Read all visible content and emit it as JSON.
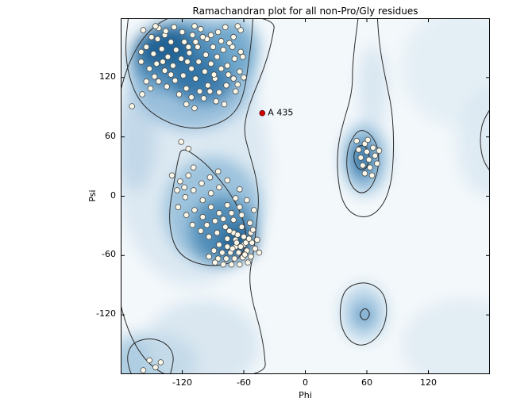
{
  "chart_data": {
    "type": "scatter",
    "title": "Ramachandran plot for all non-Pro/Gly residues",
    "xlabel": "Phi",
    "ylabel": "Psi",
    "xlim": [
      -180,
      180
    ],
    "ylim": [
      -180,
      180
    ],
    "xticks": [
      -120,
      -60,
      0,
      60,
      120
    ],
    "yticks": [
      -120,
      -60,
      0,
      60,
      120
    ],
    "grid": false,
    "legend": null,
    "background": "#f3f8fb",
    "contour_color": "#2b2b2b",
    "point_style": {
      "fill": "#fcf8ea",
      "stroke": "#4a4a4a",
      "radius": 3.4
    },
    "annotation": {
      "label": "A 435",
      "phi": -42,
      "psi": 84,
      "color": "#d40000"
    },
    "points": [
      [
        -158,
        168
      ],
      [
        -150,
        161
      ],
      [
        -143,
        170
      ],
      [
        -137,
        163
      ],
      [
        -131,
        156
      ],
      [
        -155,
        151
      ],
      [
        -148,
        144
      ],
      [
        -140,
        149
      ],
      [
        -134,
        141
      ],
      [
        -126,
        148
      ],
      [
        -160,
        136
      ],
      [
        -152,
        129
      ],
      [
        -145,
        134
      ],
      [
        -137,
        127
      ],
      [
        -129,
        132
      ],
      [
        -121,
        139
      ],
      [
        -113,
        145
      ],
      [
        -105,
        151
      ],
      [
        -118,
        156
      ],
      [
        -110,
        163
      ],
      [
        -102,
        169
      ],
      [
        -96,
        159
      ],
      [
        -90,
        151
      ],
      [
        -97,
        143
      ],
      [
        -104,
        136
      ],
      [
        -111,
        129
      ],
      [
        -119,
        122
      ],
      [
        -127,
        117
      ],
      [
        -135,
        111
      ],
      [
        -143,
        116
      ],
      [
        -151,
        109
      ],
      [
        -159,
        103
      ],
      [
        -98,
        126
      ],
      [
        -92,
        134
      ],
      [
        -86,
        141
      ],
      [
        -80,
        148
      ],
      [
        -74,
        155
      ],
      [
        -88,
        119
      ],
      [
        -95,
        112
      ],
      [
        -103,
        106
      ],
      [
        -111,
        100
      ],
      [
        -84,
        105
      ],
      [
        -77,
        112
      ],
      [
        -70,
        119
      ],
      [
        -64,
        126
      ],
      [
        -76,
        132
      ],
      [
        -69,
        139
      ],
      [
        -63,
        146
      ],
      [
        -70,
        161
      ],
      [
        -63,
        168
      ],
      [
        -120,
        166
      ],
      [
        -128,
        171
      ],
      [
        -136,
        167
      ],
      [
        -144,
        159
      ],
      [
        -85,
        166
      ],
      [
        -78,
        171
      ],
      [
        -92,
        163
      ],
      [
        -71,
        151
      ],
      [
        -66,
        113
      ],
      [
        -60,
        120
      ],
      [
        -61,
        141
      ],
      [
        -123,
        103
      ],
      [
        -116,
        109
      ],
      [
        -131,
        123
      ],
      [
        -139,
        136
      ],
      [
        -147,
        121
      ],
      [
        -155,
        116
      ],
      [
        -100,
        161
      ],
      [
        -107,
        156
      ],
      [
        -114,
        151
      ],
      [
        -82,
        129
      ],
      [
        -89,
        123
      ],
      [
        -107,
        119
      ],
      [
        -115,
        136
      ],
      [
        -93,
        106
      ],
      [
        -160,
        146
      ],
      [
        -75,
        123
      ],
      [
        -68,
        106
      ],
      [
        -82,
        157
      ],
      [
        -99,
        99
      ],
      [
        -87,
        96
      ],
      [
        -79,
        93
      ],
      [
        -116,
        93
      ],
      [
        -108,
        89
      ],
      [
        -169,
        91
      ],
      [
        -146,
        172
      ],
      [
        -108,
        172
      ],
      [
        -66,
        172
      ],
      [
        -121,
        55
      ],
      [
        -114,
        48
      ],
      [
        -130,
        21
      ],
      [
        -122,
        15
      ],
      [
        -114,
        21
      ],
      [
        -125,
        6
      ],
      [
        -117,
        -1
      ],
      [
        -109,
        6
      ],
      [
        -101,
        13
      ],
      [
        -93,
        19
      ],
      [
        -85,
        25
      ],
      [
        -109,
        29
      ],
      [
        -100,
        -4
      ],
      [
        -92,
        3
      ],
      [
        -84,
        9
      ],
      [
        -76,
        16
      ],
      [
        -92,
        -11
      ],
      [
        -84,
        -17
      ],
      [
        -76,
        -9
      ],
      [
        -68,
        -2
      ],
      [
        -100,
        -21
      ],
      [
        -108,
        -14
      ],
      [
        -116,
        -19
      ],
      [
        -124,
        -11
      ],
      [
        -96,
        -29
      ],
      [
        -88,
        -25
      ],
      [
        -80,
        -23
      ],
      [
        -72,
        -17
      ],
      [
        -64,
        -11
      ],
      [
        -70,
        -24
      ],
      [
        -62,
        -19
      ],
      [
        -78,
        -31
      ],
      [
        -86,
        -37
      ],
      [
        -94,
        -41
      ],
      [
        -102,
        -35
      ],
      [
        -110,
        -29
      ],
      [
        -70,
        -37
      ],
      [
        -62,
        -31
      ],
      [
        -54,
        -27
      ],
      [
        -76,
        -43
      ],
      [
        -68,
        -44
      ],
      [
        -60,
        -41
      ],
      [
        -53,
        -37
      ],
      [
        -84,
        -49
      ],
      [
        -76,
        -51
      ],
      [
        -68,
        -51
      ],
      [
        -60,
        -49
      ],
      [
        -52,
        -47
      ],
      [
        -89,
        -55
      ],
      [
        -81,
        -57
      ],
      [
        -73,
        -57
      ],
      [
        -65,
        -57
      ],
      [
        -57,
        -55
      ],
      [
        -49,
        -53
      ],
      [
        -94,
        -61
      ],
      [
        -85,
        -63
      ],
      [
        -77,
        -63
      ],
      [
        -69,
        -63
      ],
      [
        -61,
        -62
      ],
      [
        -53,
        -61
      ],
      [
        -45,
        -57
      ],
      [
        -72,
        -69
      ],
      [
        -64,
        -69
      ],
      [
        -56,
        -67
      ],
      [
        -80,
        -69
      ],
      [
        -88,
        -67
      ],
      [
        -118,
        9
      ],
      [
        -64,
        7
      ],
      [
        -57,
        -4
      ],
      [
        -50,
        -14
      ],
      [
        -58,
        -47
      ],
      [
        -66,
        -39
      ],
      [
        -74,
        -35
      ],
      [
        -63,
        -51
      ],
      [
        -59,
        -59
      ],
      [
        -55,
        -43
      ],
      [
        -67,
        -47
      ],
      [
        -71,
        -53
      ],
      [
        -51,
        -34
      ],
      [
        -47,
        -44
      ],
      [
        58,
        53
      ],
      [
        52,
        47
      ],
      [
        60,
        45
      ],
      [
        66,
        49
      ],
      [
        54,
        39
      ],
      [
        62,
        37
      ],
      [
        68,
        41
      ],
      [
        56,
        31
      ],
      [
        63,
        29
      ],
      [
        70,
        33
      ],
      [
        58,
        23
      ],
      [
        65,
        21
      ],
      [
        50,
        56
      ],
      [
        72,
        46
      ],
      [
        61,
        57
      ],
      [
        -152,
        -166
      ],
      [
        -146,
        -173
      ],
      [
        -158,
        -176
      ],
      [
        -141,
        -168
      ]
    ],
    "density_blobs": [
      [
        -110,
        30,
        75,
        120,
        "#d9e7f1",
        0.9
      ],
      [
        150,
        130,
        55,
        60,
        "#e2edf4",
        0.9
      ],
      [
        178,
        55,
        30,
        55,
        "#d9e7f1",
        0.8
      ],
      [
        155,
        -150,
        60,
        45,
        "#e0ebf3",
        0.9
      ],
      [
        -150,
        -168,
        45,
        30,
        "#9ec3dc",
        0.8
      ],
      [
        -100,
        -150,
        55,
        45,
        "#cfe0ec",
        0.7
      ],
      [
        -165,
        60,
        20,
        55,
        "#b9d2e5",
        0.7
      ],
      [
        -110,
        125,
        62,
        58,
        "#8fbad8",
        0.85
      ],
      [
        -125,
        140,
        45,
        34,
        "#4585b2",
        0.85
      ],
      [
        -137,
        150,
        27,
        20,
        "#1d5f92",
        0.9
      ],
      [
        -100,
        118,
        30,
        24,
        "#2c6fa3",
        0.8
      ],
      [
        -70,
        150,
        25,
        30,
        "#5f9cc4",
        0.7
      ],
      [
        -90,
        -15,
        48,
        55,
        "#93bdd9",
        0.85
      ],
      [
        -80,
        -35,
        32,
        34,
        "#4585b2",
        0.85
      ],
      [
        -66,
        -47,
        18,
        16,
        "#1d5f92",
        0.9
      ],
      [
        58,
        38,
        22,
        36,
        "#8fbad8",
        0.85
      ],
      [
        56,
        38,
        12,
        20,
        "#2f73a6",
        0.85
      ],
      [
        57,
        -118,
        22,
        28,
        "#a9cbe2",
        0.8
      ],
      [
        57,
        -120,
        9,
        10,
        "#5b94c0",
        0.85
      ],
      [
        66,
        110,
        14,
        42,
        "#cfe0ec",
        0.7
      ]
    ],
    "contours": [
      {
        "name": "outer-left",
        "closed": true,
        "pts": [
          [
            -28,
            185
          ],
          [
            -33,
            155
          ],
          [
            -40,
            130
          ],
          [
            -50,
            105
          ],
          [
            -57,
            85
          ],
          [
            -60,
            65
          ],
          [
            -55,
            45
          ],
          [
            -48,
            20
          ],
          [
            -45,
            -5
          ],
          [
            -48,
            -30
          ],
          [
            -50,
            -55
          ],
          [
            -55,
            -80
          ],
          [
            -52,
            -105
          ],
          [
            -45,
            -130
          ],
          [
            -40,
            -155
          ],
          [
            -38,
            -185
          ],
          [
            -190,
            -185
          ],
          [
            -190,
            185
          ]
        ]
      },
      {
        "name": "beta-region",
        "closed": true,
        "pts": [
          [
            -172,
            185
          ],
          [
            -176,
            150
          ],
          [
            -172,
            120
          ],
          [
            -162,
            96
          ],
          [
            -146,
            81
          ],
          [
            -126,
            71
          ],
          [
            -106,
            68
          ],
          [
            -88,
            72
          ],
          [
            -73,
            80
          ],
          [
            -63,
            94
          ],
          [
            -58,
            114
          ],
          [
            -55,
            138
          ],
          [
            -52,
            162
          ],
          [
            -51,
            185
          ],
          [
            -51,
            192
          ],
          [
            -172,
            192
          ]
        ]
      },
      {
        "name": "alpha-region",
        "closed": true,
        "pts": [
          [
            -120,
            50
          ],
          [
            -100,
            36
          ],
          [
            -85,
            19
          ],
          [
            -72,
            1
          ],
          [
            -62,
            -19
          ],
          [
            -57,
            -39
          ],
          [
            -60,
            -57
          ],
          [
            -70,
            -67
          ],
          [
            -90,
            -71
          ],
          [
            -110,
            -67
          ],
          [
            -124,
            -57
          ],
          [
            -131,
            -40
          ],
          [
            -133,
            -16
          ],
          [
            -128,
            14
          ],
          [
            -124,
            38
          ]
        ]
      },
      {
        "name": "left-handed-outer",
        "closed": true,
        "pts": [
          [
            70,
            185
          ],
          [
            72,
            155
          ],
          [
            76,
            130
          ],
          [
            80,
            110
          ],
          [
            84,
            90
          ],
          [
            86,
            65
          ],
          [
            86,
            40
          ],
          [
            84,
            15
          ],
          [
            78,
            -5
          ],
          [
            68,
            -18
          ],
          [
            56,
            -22
          ],
          [
            44,
            -17
          ],
          [
            36,
            -5
          ],
          [
            32,
            15
          ],
          [
            31,
            38
          ],
          [
            33,
            58
          ],
          [
            38,
            78
          ],
          [
            43,
            95
          ],
          [
            46,
            112
          ],
          [
            46,
            130
          ],
          [
            48,
            152
          ],
          [
            50,
            168
          ],
          [
            52,
            185
          ],
          [
            52,
            192
          ],
          [
            70,
            192
          ]
        ]
      },
      {
        "name": "left-handed-region",
        "closed": true,
        "pts": [
          [
            52,
            68
          ],
          [
            63,
            64
          ],
          [
            70,
            52
          ],
          [
            72,
            38
          ],
          [
            70,
            22
          ],
          [
            64,
            8
          ],
          [
            55,
            2
          ],
          [
            46,
            8
          ],
          [
            41,
            22
          ],
          [
            40,
            38
          ],
          [
            43,
            54
          ]
        ]
      },
      {
        "name": "left-handed-core",
        "closed": true,
        "pts": [
          [
            52,
            52
          ],
          [
            60,
            50
          ],
          [
            63,
            40
          ],
          [
            60,
            28
          ],
          [
            53,
            26
          ],
          [
            48,
            33
          ],
          [
            47,
            43
          ]
        ]
      },
      {
        "name": "bottom-right-region",
        "closed": true,
        "pts": [
          [
            40,
            -92
          ],
          [
            58,
            -86
          ],
          [
            74,
            -94
          ],
          [
            80,
            -110
          ],
          [
            78,
            -130
          ],
          [
            68,
            -146
          ],
          [
            54,
            -152
          ],
          [
            42,
            -146
          ],
          [
            34,
            -130
          ],
          [
            34,
            -108
          ]
        ]
      },
      {
        "name": "bottom-right-core",
        "closed": true,
        "pts": [
          [
            58,
            -112
          ],
          [
            64,
            -119
          ],
          [
            58,
            -127
          ],
          [
            52,
            -120
          ]
        ]
      },
      {
        "name": "bottom-left-region",
        "closed": true,
        "pts": [
          [
            -168,
            -148
          ],
          [
            -152,
            -143
          ],
          [
            -136,
            -148
          ],
          [
            -128,
            -160
          ],
          [
            -130,
            -175
          ],
          [
            -135,
            -190
          ],
          [
            -165,
            -190
          ],
          [
            -172,
            -175
          ],
          [
            -174,
            -160
          ]
        ]
      },
      {
        "name": "right-edge-arc",
        "closed": false,
        "pts": [
          [
            185,
            95
          ],
          [
            174,
            80
          ],
          [
            170,
            60
          ],
          [
            172,
            40
          ],
          [
            178,
            28
          ],
          [
            185,
            20
          ]
        ]
      }
    ]
  }
}
